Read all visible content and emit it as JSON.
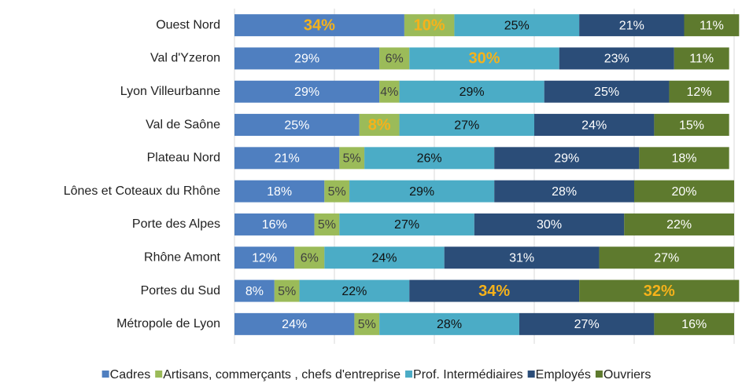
{
  "chart_data": {
    "type": "stacked_barh",
    "categories": [
      "Ouest Nord",
      "Val d'Yzeron",
      "Lyon Villeurbanne",
      "Val de Saône",
      "Plateau Nord",
      "Lônes et Coteaux du Rhône",
      "Porte des Alpes",
      "Rhône Amont",
      "Portes du Sud",
      "Métropole de Lyon"
    ],
    "series": [
      {
        "name": "Cadres",
        "color": "#4f7fc0",
        "label_color": "#ffffff",
        "values": [
          34,
          29,
          29,
          25,
          21,
          18,
          16,
          12,
          8,
          24
        ],
        "value_labels": [
          "34%",
          "29%",
          "29%",
          "25%",
          "21%",
          "18%",
          "16%",
          "12%",
          "8%",
          "24%"
        ],
        "highlight": [
          0
        ]
      },
      {
        "name": "Artisans, commerçants , chefs d'entreprise",
        "color": "#9bbb59",
        "label_color": "#404040",
        "values": [
          10,
          6,
          4,
          8,
          5,
          5,
          5,
          6,
          5,
          5
        ],
        "value_labels": [
          "10%",
          "6%",
          "4%",
          "8%",
          "5%",
          "5%",
          "5%",
          "6%",
          "5%",
          "5%"
        ],
        "highlight": [
          0,
          3
        ]
      },
      {
        "name": "Prof. Intermédiaires",
        "color": "#4bacc6",
        "label_color": "#111111",
        "values": [
          25,
          30,
          29,
          27,
          26,
          29,
          27,
          24,
          22,
          28
        ],
        "value_labels": [
          "25%",
          "30%",
          "29%",
          "27%",
          "26%",
          "29%",
          "27%",
          "24%",
          "22%",
          "28%"
        ],
        "highlight": [
          1
        ]
      },
      {
        "name": "Employés",
        "color": "#2b4d78",
        "label_color": "#ffffff",
        "values": [
          21,
          23,
          25,
          24,
          29,
          28,
          30,
          31,
          34,
          27
        ],
        "value_labels": [
          "21%",
          "23%",
          "25%",
          "24%",
          "29%",
          "28%",
          "30%",
          "31%",
          "34%",
          "27%"
        ],
        "highlight": [
          8
        ]
      },
      {
        "name": "Ouvriers",
        "color": "#5e7a2e",
        "label_color": "#ffffff",
        "values": [
          11,
          11,
          12,
          15,
          18,
          20,
          22,
          27,
          32,
          16
        ],
        "value_labels": [
          "11%",
          "11%",
          "12%",
          "15%",
          "18%",
          "20%",
          "22%",
          "27%",
          "32%",
          "16%"
        ],
        "highlight": [
          8
        ]
      }
    ],
    "highlight_color": "#f5b21b",
    "xlim": [
      0,
      100
    ],
    "xticks": [
      0,
      20,
      40,
      60,
      80,
      100
    ],
    "grid": true,
    "legend": "bottom"
  }
}
